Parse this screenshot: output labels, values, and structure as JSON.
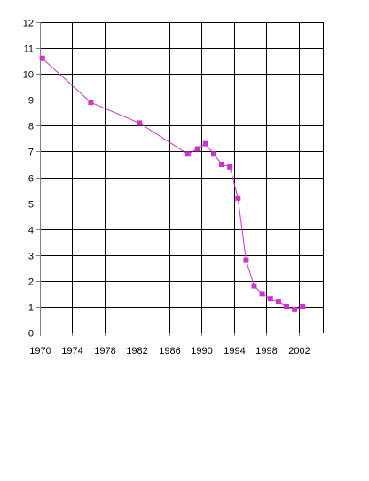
{
  "chart_data": {
    "type": "line",
    "title": "",
    "xlabel": "",
    "ylabel": "",
    "xlim": [
      1970,
      2005
    ],
    "ylim": [
      0,
      12
    ],
    "x_ticks": [
      1970,
      1974,
      1978,
      1982,
      1986,
      1990,
      1994,
      1998,
      2002
    ],
    "y_ticks": [
      0,
      1,
      2,
      3,
      4,
      5,
      6,
      7,
      8,
      9,
      10,
      11,
      12
    ],
    "x_tick_labels": [
      "1970",
      "1974",
      "1978",
      "1982",
      "1986",
      "1990",
      "1994",
      "1998",
      "2002"
    ],
    "y_tick_labels": [
      "0",
      "1",
      "2",
      "3",
      "4",
      "5",
      "6",
      "7",
      "8",
      "9",
      "10",
      "11",
      "12"
    ],
    "grid": true,
    "legend": "none",
    "series": [
      {
        "color": "#cc33cc",
        "marker": "square",
        "points": [
          {
            "x": 1970.3,
            "y": 10.6
          },
          {
            "x": 1976.3,
            "y": 8.9
          },
          {
            "x": 1982.3,
            "y": 8.1
          },
          {
            "x": 1988.3,
            "y": 6.9
          },
          {
            "x": 1989.5,
            "y": 7.1
          },
          {
            "x": 1990.5,
            "y": 7.3
          },
          {
            "x": 1991.5,
            "y": 6.9
          },
          {
            "x": 1992.5,
            "y": 6.5
          },
          {
            "x": 1993.5,
            "y": 6.4
          },
          {
            "x": 1994.5,
            "y": 5.2
          },
          {
            "x": 1995.5,
            "y": 2.8
          },
          {
            "x": 1996.5,
            "y": 1.8
          },
          {
            "x": 1997.5,
            "y": 1.5
          },
          {
            "x": 1998.5,
            "y": 1.3
          },
          {
            "x": 1999.5,
            "y": 1.2
          },
          {
            "x": 2000.5,
            "y": 1.0
          },
          {
            "x": 2001.5,
            "y": 0.9
          },
          {
            "x": 2002.5,
            "y": 1.0
          }
        ]
      }
    ]
  },
  "colors": {
    "grid": "#000000",
    "frame": "#000000",
    "axis": "#808080",
    "series": "#cc33cc"
  }
}
